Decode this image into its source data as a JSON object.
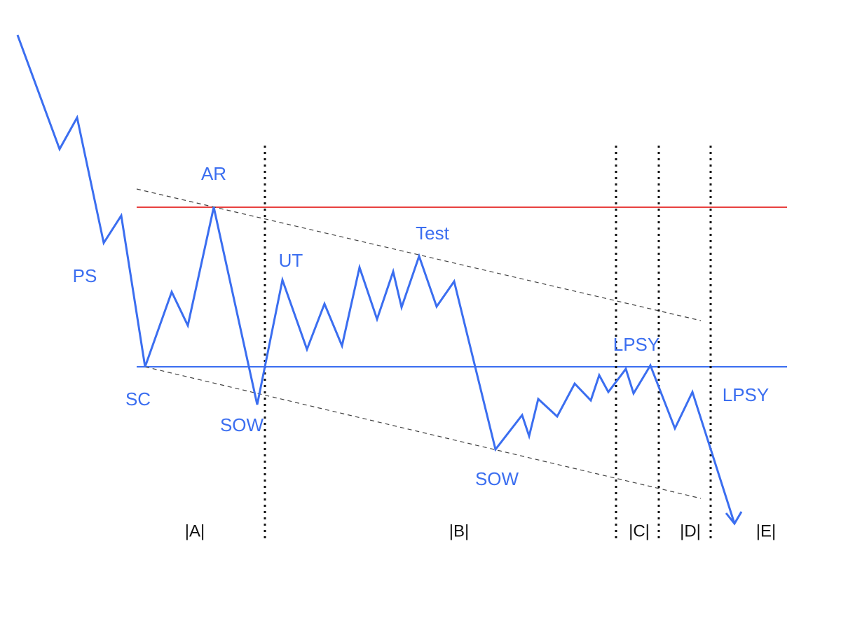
{
  "annotations": [
    "PS",
    "SC",
    "AR",
    "SOW",
    "UT",
    "Test",
    "SOW",
    "LPSY",
    "LPSY"
  ],
  "phases": [
    "|A|",
    "|B|",
    "|C|",
    "|D|",
    "|E|"
  ]
}
